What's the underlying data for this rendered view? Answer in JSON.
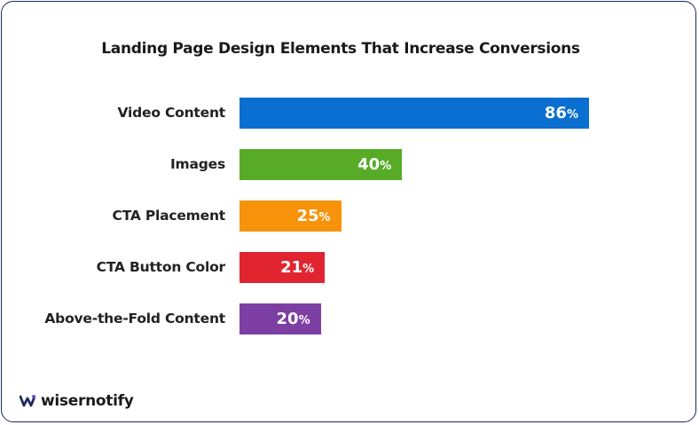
{
  "chart_data": {
    "type": "bar",
    "orientation": "horizontal",
    "title": "Landing Page Design Elements That Increase Conversions",
    "categories": [
      "Video Content",
      "Images",
      "CTA Placement",
      "CTA Button Color",
      "Above-the-Fold Content"
    ],
    "values": [
      86,
      40,
      25,
      21,
      20
    ],
    "unit": "%",
    "colors": [
      "#0a6fd1",
      "#57ab26",
      "#f7930b",
      "#e02530",
      "#7d3fa4"
    ],
    "xlim": [
      0,
      100
    ],
    "grid": false,
    "legend": "none"
  },
  "brand": {
    "name": "wisernotify",
    "logo_icon": "wisernotify-logo-icon",
    "logo_color": "#1f2a5c"
  }
}
